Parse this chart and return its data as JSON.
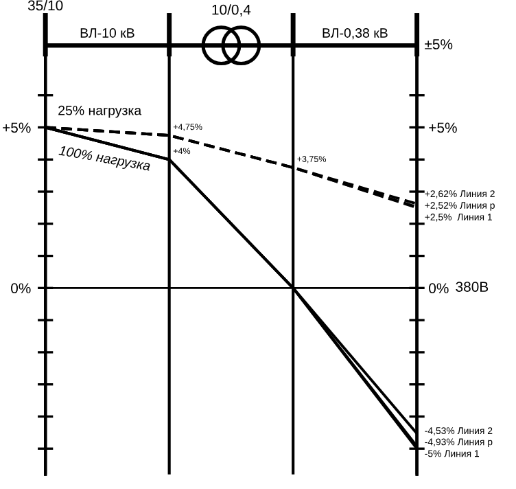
{
  "chart_data": {
    "type": "line",
    "categories": [
      null,
      null,
      null,
      null
    ],
    "series": [
      {
        "color": "#000000",
        "line_style": "dashed",
        "values": [
          5,
          4.75,
          3.75,
          2.5
        ],
        "value_labels": [
          null,
          "+4,75%",
          "+3,75%",
          "+2,5%  Линия 1"
        ]
      },
      {
        "color": "#000000",
        "line_style": "dashed",
        "values": [
          5,
          4.75,
          3.75,
          2.52
        ],
        "value_labels": [
          null,
          null,
          null,
          "+2,52% Линия р"
        ]
      },
      {
        "color": "#000000",
        "line_style": "dashed",
        "values": [
          5,
          4.75,
          3.75,
          2.62
        ],
        "value_labels": [
          null,
          null,
          null,
          "+2,62% Линия 2"
        ]
      },
      {
        "color": "#000000",
        "line_style": "solid",
        "values": [
          5,
          4,
          0,
          -5
        ],
        "value_labels": [
          null,
          "+4%",
          null,
          "-5% Линия 1"
        ]
      },
      {
        "color": "#000000",
        "line_style": "solid",
        "values": [
          5,
          4,
          0,
          -4.93
        ],
        "value_labels": [
          null,
          null,
          null,
          "-4,93% Линия р"
        ]
      },
      {
        "color": "#000000",
        "line_style": "solid",
        "values": [
          5,
          4,
          0,
          -4.53
        ],
        "value_labels": [
          null,
          null,
          null,
          "-4,53% Линия 2"
        ]
      }
    ],
    "ylim": [
      -5.8,
      7.55
    ],
    "yticks": [
      {
        "value": -5,
        "label": null
      },
      {
        "value": -4,
        "label": null
      },
      {
        "value": -3,
        "label": null
      },
      {
        "value": -2,
        "label": null
      },
      {
        "value": -1,
        "label": null
      },
      {
        "value": 0,
        "label": "0%"
      },
      {
        "value": 1,
        "label": null
      },
      {
        "value": 2,
        "label": null
      },
      {
        "value": 3,
        "label": null
      },
      {
        "value": 4,
        "label": null
      },
      {
        "value": 5,
        "label": "+5%"
      },
      {
        "value": 6,
        "label": null
      }
    ],
    "y2lim": [
      -5.8,
      7.55
    ],
    "y2ticks": [
      {
        "value": -5,
        "label": null
      },
      {
        "value": -4,
        "label": null
      },
      {
        "value": -3,
        "label": null
      },
      {
        "value": -2,
        "label": null
      },
      {
        "value": -1,
        "label": null
      },
      {
        "value": 0,
        "label": "0%"
      },
      {
        "value": 1,
        "label": null
      },
      {
        "value": 2,
        "label": null
      },
      {
        "value": 3,
        "label": null
      },
      {
        "value": 4,
        "label": null
      },
      {
        "value": 5,
        "label": "+5%"
      },
      {
        "value": 6,
        "label": null
      }
    ],
    "y2label": "±5%",
    "ref_lines": [
      {
        "axis": "y",
        "value": 0,
        "label": "380В",
        "color": "#000000"
      }
    ],
    "grid": "x",
    "marker": "none",
    "annotations": [
      "35/10",
      "ВЛ-10 кВ",
      "10/0,4",
      "ВЛ-0,38 кВ",
      "25% нагрузка",
      "100% нагрузка"
    ]
  }
}
